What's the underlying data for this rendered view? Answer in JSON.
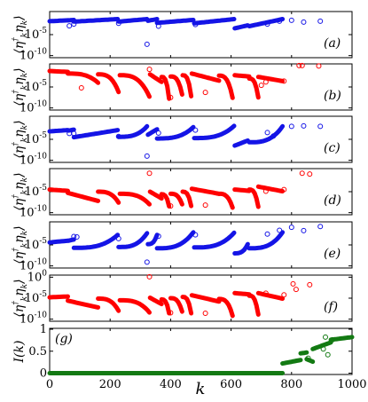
{
  "chart_data": {
    "type": "scatter",
    "xlabel": "k",
    "xlim": [
      0,
      1000
    ],
    "xticks": [
      "0",
      "200",
      "400",
      "600",
      "800",
      "1000"
    ],
    "panels": [
      {
        "id": "a",
        "label": "(a)",
        "ylabel": "⟨η†kηk⟩",
        "color": "#1414e6",
        "scale": "log",
        "yticks": [
          "10-5",
          "10-10"
        ],
        "ytick_values": [
          -5,
          -10
        ],
        "ylim_log10": [
          -10.5,
          0.5
        ],
        "segments": [
          [
            0,
            60,
            -1.8,
            -1.6
          ],
          [
            62,
            80,
            -1.6,
            -1.5
          ],
          [
            80,
            225,
            -1.9,
            -1.3
          ],
          [
            228,
            322,
            -1.9,
            -1.3
          ],
          [
            325,
            355,
            -1.7,
            -1.3
          ],
          [
            355,
            475,
            -2.2,
            -1.5
          ],
          [
            478,
            610,
            -2.3,
            -1.3
          ],
          [
            612,
            655,
            -3.5,
            -2.8
          ],
          [
            660,
            770,
            -3.0,
            -1.3
          ]
        ],
        "outliers": [
          [
            65,
            -2.9
          ],
          [
            80,
            -2.5
          ],
          [
            228,
            -2.3
          ],
          [
            322,
            -7.3
          ],
          [
            360,
            -3.0
          ],
          [
            482,
            -2.6
          ],
          [
            720,
            -2.5
          ],
          [
            760,
            -1.8
          ],
          [
            800,
            -1.6
          ],
          [
            840,
            -2.0
          ],
          [
            895,
            -1.8
          ]
        ]
      },
      {
        "id": "b",
        "label": "(b)",
        "ylabel": "⟨η†kηk⟩",
        "color": "#ff0000",
        "scale": "log",
        "yticks": [
          "10-5",
          "10-10"
        ],
        "ytick_values": [
          -5,
          -10
        ],
        "ylim_log10": [
          -10.5,
          0.5
        ],
        "segments": [
          [
            0,
            60,
            -1.2,
            -1.4
          ],
          [
            60,
            160,
            -1.8,
            -4.0
          ],
          [
            160,
            228,
            -2.0,
            -6.2
          ],
          [
            232,
            330,
            -2.2,
            -7.3
          ],
          [
            332,
            370,
            -2.0,
            -3.8
          ],
          [
            370,
            395,
            -2.6,
            -7.8
          ],
          [
            400,
            438,
            -2.5,
            -6.8
          ],
          [
            440,
            468,
            -2.2,
            -7.2
          ],
          [
            470,
            560,
            -1.8,
            -3.5
          ],
          [
            560,
            605,
            -2.3,
            -7.6
          ],
          [
            612,
            660,
            -2.2,
            -2.5
          ],
          [
            660,
            690,
            -3.0,
            -7.5
          ],
          [
            690,
            770,
            -2.6,
            -3.6
          ]
        ],
        "outliers": [
          [
            105,
            -5.2
          ],
          [
            330,
            -0.8
          ],
          [
            400,
            -7.5
          ],
          [
            515,
            -6.3
          ],
          [
            700,
            -4.6
          ],
          [
            715,
            -3.8
          ],
          [
            775,
            -3.6
          ],
          [
            825,
            0.1
          ],
          [
            835,
            0.1
          ],
          [
            890,
            0.0
          ]
        ]
      },
      {
        "id": "c",
        "label": "(c)",
        "ylabel": "⟨η†kηk⟩",
        "color": "#1414e6",
        "scale": "log",
        "yticks": [
          "10-5",
          "10-10"
        ],
        "ytick_values": [
          -5,
          -10
        ],
        "ylim_log10": [
          -10.5,
          0.5
        ],
        "segments": [
          [
            0,
            60,
            -3.1,
            -2.8
          ],
          [
            62,
            80,
            -2.9,
            -2.7
          ],
          [
            80,
            225,
            -4.5,
            -2.8
          ],
          [
            228,
            322,
            -4.4,
            -1.9
          ],
          [
            325,
            355,
            -3.9,
            -2.6
          ],
          [
            355,
            475,
            -4.8,
            -2.1
          ],
          [
            478,
            610,
            -4.7,
            -1.8
          ],
          [
            612,
            655,
            -6.5,
            -5.3
          ],
          [
            660,
            770,
            -5.7,
            -1.9
          ]
        ],
        "outliers": [
          [
            65,
            -3.6
          ],
          [
            80,
            -3.6
          ],
          [
            228,
            -4.3
          ],
          [
            322,
            -9.0
          ],
          [
            360,
            -3.5
          ],
          [
            482,
            -2.8
          ],
          [
            720,
            -3.4
          ],
          [
            740,
            -4.2
          ],
          [
            800,
            -1.9
          ],
          [
            840,
            -1.8
          ],
          [
            895,
            -1.9
          ]
        ]
      },
      {
        "id": "d",
        "label": "(d)",
        "ylabel": "⟨η†kηk⟩",
        "color": "#ff0000",
        "scale": "log",
        "yticks": [
          "10-5",
          "10-10"
        ],
        "ytick_values": [
          -5,
          -10
        ],
        "ylim_log10": [
          -10.5,
          0.5
        ],
        "segments": [
          [
            0,
            60,
            -4.5,
            -4.8
          ],
          [
            60,
            160,
            -5.3,
            -7.2
          ],
          [
            160,
            228,
            -5.0,
            -7.6
          ],
          [
            232,
            330,
            -5.5,
            -8.0
          ],
          [
            332,
            370,
            -5.0,
            -6.6
          ],
          [
            370,
            395,
            -5.6,
            -8.5
          ],
          [
            400,
            438,
            -5.5,
            -8.0
          ],
          [
            440,
            468,
            -5.0,
            -8.4
          ],
          [
            470,
            560,
            -4.3,
            -5.5
          ],
          [
            560,
            605,
            -5.5,
            -8.8
          ],
          [
            612,
            660,
            -4.5,
            -4.8
          ],
          [
            660,
            690,
            -4.5,
            -8.6
          ],
          [
            690,
            770,
            -3.8,
            -4.9
          ]
        ],
        "outliers": [
          [
            330,
            -0.6
          ],
          [
            400,
            -8.4
          ],
          [
            515,
            -8.2
          ],
          [
            715,
            -4.9
          ],
          [
            775,
            -4.5
          ],
          [
            835,
            -0.6
          ],
          [
            860,
            -0.8
          ]
        ]
      },
      {
        "id": "e",
        "label": "(e)",
        "ylabel": "⟨η†kηk⟩",
        "color": "#1414e6",
        "scale": "log",
        "yticks": [
          "10-5",
          "10-10"
        ],
        "ytick_values": [
          -5,
          -10
        ],
        "ylim_log10": [
          -10.5,
          0.5
        ],
        "segments": [
          [
            0,
            60,
            -4.4,
            -4.0
          ],
          [
            62,
            80,
            -4.0,
            -3.7
          ],
          [
            80,
            225,
            -5.7,
            -2.6
          ],
          [
            228,
            322,
            -5.5,
            -2.2
          ],
          [
            325,
            355,
            -4.8,
            -2.6
          ],
          [
            355,
            475,
            -5.8,
            -2.0
          ],
          [
            478,
            610,
            -5.6,
            -2.1
          ],
          [
            612,
            655,
            -7.0,
            -4.8
          ],
          [
            660,
            770,
            -5.8,
            -2.0
          ]
        ],
        "outliers": [
          [
            80,
            -3.0
          ],
          [
            90,
            -3.1
          ],
          [
            228,
            -3.5
          ],
          [
            322,
            -9.1
          ],
          [
            360,
            -2.9
          ],
          [
            482,
            -2.6
          ],
          [
            720,
            -2.4
          ],
          [
            760,
            -1.5
          ],
          [
            800,
            -0.8
          ],
          [
            840,
            -1.6
          ],
          [
            895,
            -0.6
          ]
        ]
      },
      {
        "id": "f",
        "label": "(f)",
        "ylabel": "⟨η†kηk⟩",
        "color": "#ff0000",
        "scale": "log",
        "yticks": [
          "100",
          "10-5",
          "10-10"
        ],
        "ytick_values": [
          0,
          -5,
          -10
        ],
        "ylim_log10": [
          -10.5,
          0.5
        ],
        "segments": [
          [
            0,
            60,
            -4.8,
            -4.6
          ],
          [
            60,
            160,
            -5.6,
            -7.2
          ],
          [
            160,
            228,
            -5.1,
            -8.0
          ],
          [
            232,
            330,
            -5.5,
            -8.4
          ],
          [
            332,
            370,
            -4.9,
            -6.4
          ],
          [
            370,
            395,
            -5.3,
            -8.6
          ],
          [
            400,
            438,
            -5.0,
            -8.2
          ],
          [
            440,
            468,
            -4.7,
            -8.6
          ],
          [
            470,
            560,
            -4.3,
            -5.8
          ],
          [
            560,
            605,
            -5.2,
            -9.2
          ],
          [
            612,
            660,
            -3.8,
            -4.1
          ],
          [
            660,
            690,
            -4.4,
            -8.9
          ],
          [
            690,
            770,
            -3.8,
            -5.1
          ]
        ],
        "outliers": [
          [
            330,
            0.1
          ],
          [
            400,
            -8.5
          ],
          [
            515,
            -8.6
          ],
          [
            715,
            -3.8
          ],
          [
            775,
            -4.2
          ],
          [
            805,
            -1.6
          ],
          [
            815,
            -2.9
          ],
          [
            860,
            -1.8
          ]
        ]
      },
      {
        "id": "g",
        "label": "(g)",
        "ylabel": "I(k)",
        "color": "#137a13",
        "scale": "linear",
        "yticks": [
          "1",
          "0.5",
          "0"
        ],
        "ytick_values": [
          1,
          0.5,
          0
        ],
        "ylim": [
          -0.03,
          1.02
        ],
        "segments": [
          [
            0,
            770,
            0,
            0
          ],
          [
            770,
            830,
            0.22,
            0.3
          ],
          [
            830,
            850,
            0.45,
            0.47
          ],
          [
            850,
            870,
            0.32,
            0.26
          ],
          [
            870,
            930,
            0.55,
            0.7
          ],
          [
            930,
            1000,
            0.76,
            0.82
          ]
        ],
        "outliers": [
          [
            855,
            0.34
          ],
          [
            905,
            0.55
          ],
          [
            912,
            0.82
          ],
          [
            920,
            0.42
          ],
          [
            935,
            0.76
          ]
        ]
      }
    ]
  }
}
